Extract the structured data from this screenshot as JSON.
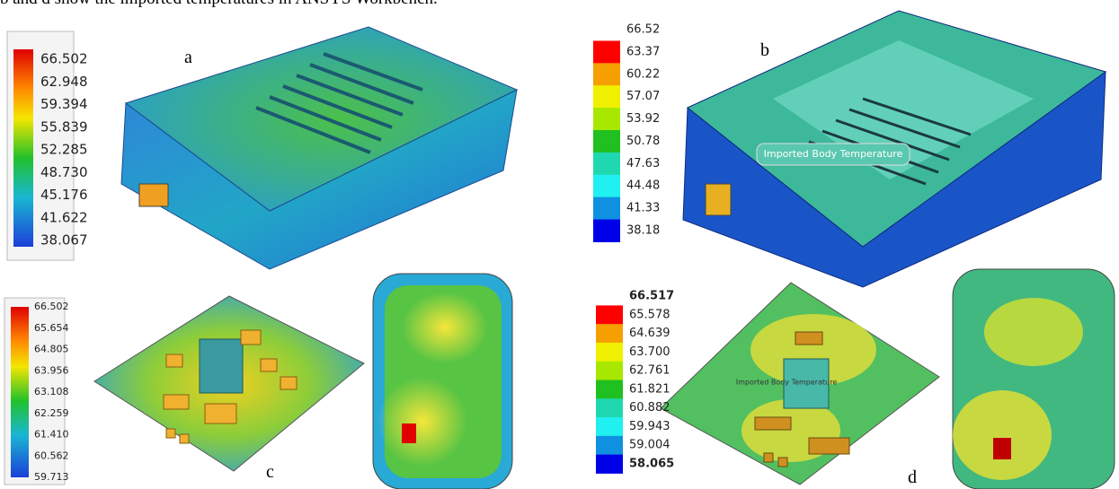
{
  "caption": "b and d show the imported temperatures in ANSYS Workbench.",
  "panels": [
    {
      "label": "a",
      "legend": [
        "66.502",
        "62.948",
        "59.394",
        "55.839",
        "52.285",
        "48.730",
        "45.176",
        "41.622",
        "38.067"
      ]
    },
    {
      "label": "b",
      "legend": [
        "66.52",
        "63.37",
        "60.22",
        "57.07",
        "53.92",
        "50.78",
        "47.63",
        "44.48",
        "41.33",
        "38.18"
      ],
      "annotation": "Imported Body Temperature"
    },
    {
      "label": "c",
      "legend": [
        "66.502",
        "65.654",
        "64.805",
        "63.956",
        "63.108",
        "62.259",
        "61.410",
        "60.562",
        "59.713"
      ]
    },
    {
      "label": "d",
      "legend": [
        "66.517",
        "65.578",
        "64.639",
        "63.700",
        "62.761",
        "61.821",
        "60.882",
        "59.943",
        "59.004",
        "58.065"
      ],
      "annotation": "Imported Body Temperature"
    }
  ]
}
